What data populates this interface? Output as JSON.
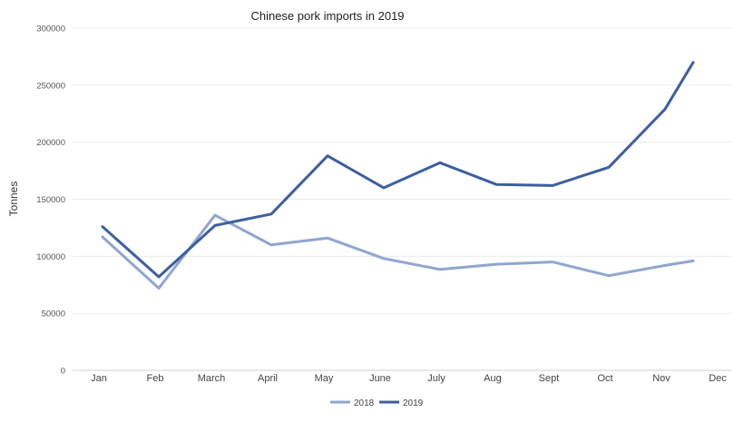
{
  "chart_data": {
    "type": "line",
    "title": "Chinese pork imports in 2019",
    "ylabel": "Tonnes",
    "xlabel": "",
    "categories": [
      "Jan",
      "Feb",
      "March",
      "April",
      "May",
      "June",
      "July",
      "Aug",
      "Sept",
      "Oct",
      "Nov",
      "Dec"
    ],
    "ylim": [
      0,
      300000
    ],
    "yticks": [
      "0",
      "50000",
      "100000",
      "150000",
      "200000",
      "250000",
      "300000"
    ],
    "grid": true,
    "legend_position": "bottom",
    "series": [
      {
        "name": "2018",
        "color": "#8fa6cf",
        "values": [
          117000,
          72000,
          136000,
          110000,
          116000,
          98000,
          88500,
          93000,
          95000,
          83000,
          92000,
          96000
        ]
      },
      {
        "name": "2019",
        "color": "#3d5fa0",
        "values": [
          126000,
          82000,
          127000,
          137000,
          188000,
          160000,
          182000,
          163000,
          162000,
          178000,
          229000,
          270000
        ]
      }
    ]
  }
}
